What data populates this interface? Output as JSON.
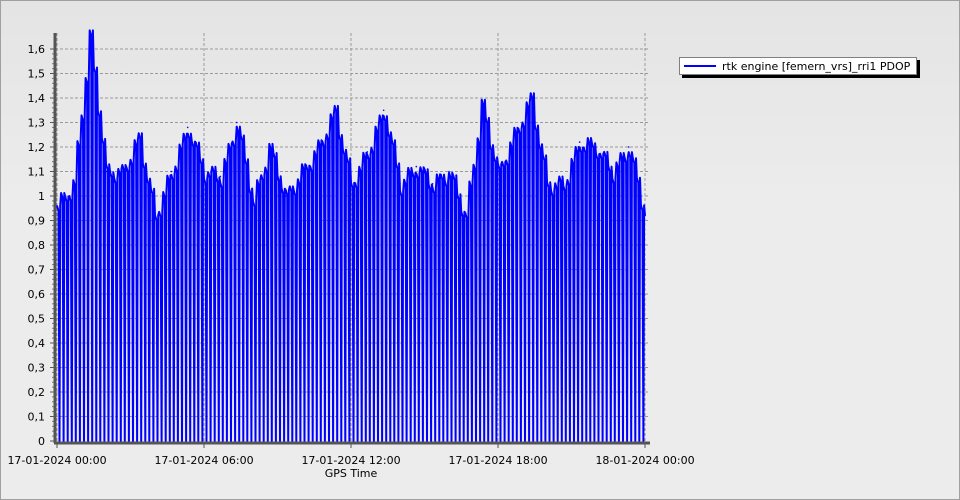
{
  "chart_data": {
    "type": "line",
    "title": "",
    "xlabel": "GPS Time",
    "ylabel": "",
    "ylim": [
      0,
      1.66
    ],
    "yticks": [
      "0",
      "0,1",
      "0,2",
      "0,3",
      "0,4",
      "0,5",
      "0,6",
      "0,7",
      "0,8",
      "0,9",
      "1",
      "1,1",
      "1,2",
      "1,3",
      "1,4",
      "1,5",
      "1,6"
    ],
    "xticks": [
      "17-01-2024 00:00",
      "17-01-2024 06:00",
      "17-01-2024 12:00",
      "17-01-2024 18:00",
      "18-01-2024 00:00"
    ],
    "grid": true,
    "legend_position": "top-right, outside plot",
    "series": [
      {
        "name": "rtk engine [femern_vrs]_rri1 PDOP",
        "color": "#0000ff",
        "x": [
          "17-01-2024 00:00",
          "17-01-2024 00:40",
          "17-01-2024 01:20",
          "17-01-2024 02:00",
          "17-01-2024 02:40",
          "17-01-2024 03:20",
          "17-01-2024 04:00",
          "17-01-2024 04:40",
          "17-01-2024 05:20",
          "17-01-2024 06:00",
          "17-01-2024 06:40",
          "17-01-2024 07:20",
          "17-01-2024 08:00",
          "17-01-2024 08:40",
          "17-01-2024 09:20",
          "17-01-2024 10:00",
          "17-01-2024 10:40",
          "17-01-2024 11:20",
          "17-01-2024 12:00",
          "17-01-2024 12:40",
          "17-01-2024 13:20",
          "17-01-2024 14:00",
          "17-01-2024 14:40",
          "17-01-2024 15:20",
          "17-01-2024 16:00",
          "17-01-2024 16:40",
          "17-01-2024 17:20",
          "17-01-2024 18:00",
          "17-01-2024 18:40",
          "17-01-2024 19:20",
          "17-01-2024 20:00",
          "17-01-2024 20:40",
          "17-01-2024 21:20",
          "17-01-2024 22:00",
          "17-01-2024 22:40",
          "17-01-2024 23:20",
          "18-01-2024 00:00"
        ],
        "values": [
          0.96,
          1.05,
          1.65,
          1.1,
          1.1,
          1.24,
          0.92,
          1.1,
          1.28,
          1.1,
          1.08,
          1.3,
          0.98,
          1.2,
          1.0,
          1.1,
          1.2,
          1.35,
          1.05,
          1.18,
          1.35,
          1.05,
          1.12,
          1.05,
          1.1,
          0.92,
          1.37,
          1.1,
          1.25,
          1.4,
          1.05,
          1.05,
          1.22,
          1.2,
          1.1,
          1.2,
          0.92
        ]
      }
    ]
  }
}
